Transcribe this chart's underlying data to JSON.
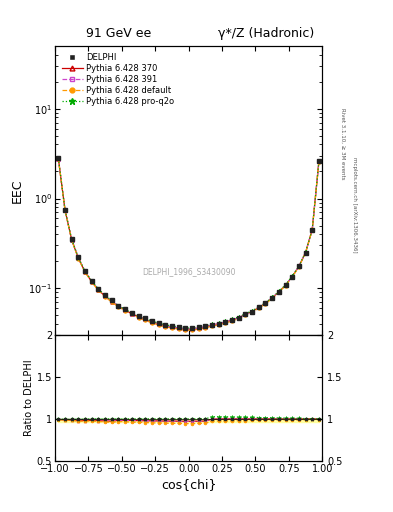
{
  "title_left": "91 GeV ee",
  "title_right": "γ*/Z (Hadronic)",
  "ylabel_main": "EEC",
  "ylabel_ratio": "Ratio to DELPHI",
  "xlabel": "cos{chi}",
  "right_label_top": "Rivet 3.1.10, ≥ 3M events",
  "right_label_bottom": "mcplots.cern.ch [arXiv:1306.3436]",
  "watermark": "DELPHI_1996_S3430090",
  "ylim_main_log": [
    0.03,
    50
  ],
  "ylim_ratio": [
    0.5,
    2.0
  ],
  "xlim": [
    -1.0,
    1.0
  ],
  "legend_entries": [
    "DELPHI",
    "Pythia 6.428 370",
    "Pythia 6.428 391",
    "Pythia 6.428 default",
    "Pythia 6.428 pro-q2o"
  ],
  "colors": {
    "data": "#222222",
    "py370": "#cc0000",
    "py391": "#cc44cc",
    "pydefault": "#ff9900",
    "pyq2o": "#00aa00"
  },
  "cos_chi": [
    -0.975,
    -0.925,
    -0.875,
    -0.825,
    -0.775,
    -0.725,
    -0.675,
    -0.625,
    -0.575,
    -0.525,
    -0.475,
    -0.425,
    -0.375,
    -0.325,
    -0.275,
    -0.225,
    -0.175,
    -0.125,
    -0.075,
    -0.025,
    0.025,
    0.075,
    0.125,
    0.175,
    0.225,
    0.275,
    0.325,
    0.375,
    0.425,
    0.475,
    0.525,
    0.575,
    0.625,
    0.675,
    0.725,
    0.775,
    0.825,
    0.875,
    0.925,
    0.975
  ],
  "eec_data": [
    2.8,
    0.75,
    0.35,
    0.22,
    0.155,
    0.12,
    0.098,
    0.083,
    0.073,
    0.064,
    0.058,
    0.053,
    0.049,
    0.046,
    0.043,
    0.041,
    0.039,
    0.038,
    0.037,
    0.036,
    0.036,
    0.037,
    0.038,
    0.039,
    0.04,
    0.042,
    0.044,
    0.047,
    0.051,
    0.055,
    0.061,
    0.068,
    0.078,
    0.091,
    0.108,
    0.135,
    0.175,
    0.25,
    0.45,
    2.6
  ],
  "eec_py370": [
    2.78,
    0.74,
    0.345,
    0.215,
    0.152,
    0.118,
    0.096,
    0.081,
    0.071,
    0.063,
    0.057,
    0.052,
    0.048,
    0.045,
    0.042,
    0.04,
    0.038,
    0.037,
    0.036,
    0.035,
    0.035,
    0.036,
    0.037,
    0.039,
    0.04,
    0.042,
    0.044,
    0.047,
    0.051,
    0.055,
    0.061,
    0.068,
    0.078,
    0.091,
    0.108,
    0.135,
    0.175,
    0.25,
    0.45,
    2.6
  ],
  "eec_py391": [
    2.79,
    0.745,
    0.348,
    0.218,
    0.154,
    0.119,
    0.097,
    0.082,
    0.072,
    0.063,
    0.057,
    0.052,
    0.048,
    0.045,
    0.042,
    0.04,
    0.038,
    0.037,
    0.036,
    0.035,
    0.035,
    0.036,
    0.037,
    0.039,
    0.04,
    0.042,
    0.044,
    0.047,
    0.051,
    0.055,
    0.061,
    0.068,
    0.078,
    0.091,
    0.108,
    0.135,
    0.175,
    0.25,
    0.45,
    2.6
  ],
  "eec_pydefault": [
    2.77,
    0.742,
    0.344,
    0.214,
    0.151,
    0.117,
    0.095,
    0.08,
    0.07,
    0.062,
    0.056,
    0.051,
    0.047,
    0.044,
    0.041,
    0.039,
    0.037,
    0.036,
    0.035,
    0.034,
    0.034,
    0.035,
    0.036,
    0.038,
    0.039,
    0.041,
    0.043,
    0.046,
    0.05,
    0.054,
    0.06,
    0.067,
    0.077,
    0.09,
    0.107,
    0.133,
    0.173,
    0.248,
    0.448,
    2.58
  ],
  "eec_pyq2o": [
    2.8,
    0.746,
    0.349,
    0.219,
    0.155,
    0.12,
    0.098,
    0.083,
    0.073,
    0.064,
    0.058,
    0.053,
    0.049,
    0.046,
    0.043,
    0.041,
    0.039,
    0.038,
    0.037,
    0.036,
    0.036,
    0.037,
    0.038,
    0.04,
    0.041,
    0.043,
    0.045,
    0.048,
    0.052,
    0.056,
    0.062,
    0.069,
    0.079,
    0.092,
    0.109,
    0.136,
    0.176,
    0.251,
    0.451,
    2.61
  ],
  "ratio_py370": [
    0.993,
    0.987,
    0.986,
    0.977,
    0.981,
    0.983,
    0.98,
    0.976,
    0.973,
    0.984,
    0.983,
    0.981,
    0.98,
    0.978,
    0.977,
    0.976,
    0.974,
    0.974,
    0.973,
    0.972,
    0.972,
    0.973,
    0.974,
    0.997,
    1.0,
    1.0,
    1.0,
    1.0,
    1.0,
    1.0,
    1.0,
    1.0,
    1.0,
    1.0,
    1.0,
    1.0,
    1.0,
    1.0,
    1.0,
    1.0
  ],
  "ratio_py391": [
    0.996,
    0.993,
    0.994,
    0.991,
    0.994,
    0.992,
    0.99,
    0.988,
    0.986,
    0.984,
    0.983,
    0.981,
    0.98,
    0.978,
    0.977,
    0.976,
    0.975,
    0.974,
    0.973,
    0.972,
    0.972,
    0.973,
    0.975,
    0.997,
    1.0,
    1.0,
    1.0,
    1.0,
    1.0,
    1.0,
    1.0,
    1.0,
    1.0,
    1.0,
    1.0,
    1.0,
    1.0,
    1.0,
    1.0,
    1.0
  ],
  "ratio_pydefault": [
    0.989,
    0.989,
    0.983,
    0.973,
    0.974,
    0.975,
    0.97,
    0.964,
    0.959,
    0.969,
    0.966,
    0.962,
    0.959,
    0.957,
    0.953,
    0.951,
    0.949,
    0.947,
    0.946,
    0.944,
    0.944,
    0.946,
    0.947,
    0.974,
    0.975,
    0.976,
    0.977,
    0.979,
    0.98,
    0.982,
    0.984,
    0.985,
    0.987,
    0.989,
    0.991,
    0.985,
    0.989,
    0.992,
    0.996,
    0.992
  ],
  "ratio_pyq2o": [
    1.0,
    0.995,
    0.997,
    0.995,
    1.0,
    1.0,
    1.0,
    1.0,
    1.0,
    1.0,
    1.0,
    1.0,
    1.0,
    1.0,
    1.0,
    1.0,
    1.0,
    1.0,
    1.0,
    1.0,
    1.0,
    1.0,
    1.0,
    1.026,
    1.025,
    1.024,
    1.023,
    1.021,
    1.02,
    1.018,
    1.016,
    1.015,
    1.013,
    1.011,
    1.009,
    1.007,
    1.006,
    1.004,
    1.002,
    1.004
  ]
}
